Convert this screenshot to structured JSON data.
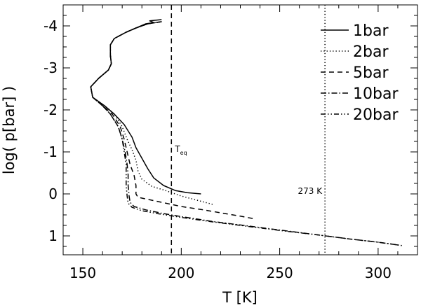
{
  "chart_data": {
    "type": "line",
    "title": "",
    "xlabel": "T [K]",
    "ylabel": "log( p[bar] )",
    "xlim": [
      140,
      320
    ],
    "ylim": [
      1.45,
      -4.5
    ],
    "y_inverted": true,
    "x_ticks": [
      150,
      200,
      250,
      300
    ],
    "y_ticks": [
      -4,
      -3,
      -2,
      -1,
      0,
      1
    ],
    "grid": false,
    "legend_position": "top-right",
    "series": [
      {
        "name": "1bar",
        "dash": "solid",
        "points": [
          [
            190,
            -4.15
          ],
          [
            184,
            -4.12
          ],
          [
            186,
            -4.08
          ],
          [
            182,
            -4.05
          ],
          [
            177,
            -3.95
          ],
          [
            172,
            -3.85
          ],
          [
            166,
            -3.7
          ],
          [
            164,
            -3.55
          ],
          [
            164,
            -3.3
          ],
          [
            164.5,
            -3.1
          ],
          [
            163,
            -2.95
          ],
          [
            158,
            -2.75
          ],
          [
            154,
            -2.55
          ],
          [
            155,
            -2.3
          ],
          [
            161,
            -2.1
          ],
          [
            166,
            -1.9
          ],
          [
            171,
            -1.65
          ],
          [
            175,
            -1.35
          ],
          [
            177,
            -1.1
          ],
          [
            180,
            -0.85
          ],
          [
            183,
            -0.6
          ],
          [
            186,
            -0.38
          ],
          [
            191,
            -0.2
          ],
          [
            197,
            -0.08
          ],
          [
            203,
            -0.03
          ],
          [
            210,
            0.0
          ]
        ]
      },
      {
        "name": "2bar",
        "dash": "dotted",
        "points": [
          [
            190,
            -4.1
          ],
          [
            183,
            -4.05
          ],
          [
            177,
            -3.95
          ],
          [
            172,
            -3.85
          ],
          [
            166,
            -3.7
          ],
          [
            164,
            -3.55
          ],
          [
            164,
            -3.3
          ],
          [
            164.5,
            -3.1
          ],
          [
            163,
            -2.95
          ],
          [
            158,
            -2.75
          ],
          [
            154,
            -2.55
          ],
          [
            155,
            -2.3
          ],
          [
            161,
            -2.1
          ],
          [
            166,
            -1.9
          ],
          [
            170,
            -1.6
          ],
          [
            172.5,
            -1.3
          ],
          [
            175,
            -1.05
          ],
          [
            177,
            -0.8
          ],
          [
            178,
            -0.55
          ],
          [
            180,
            -0.35
          ],
          [
            185,
            -0.18
          ],
          [
            192,
            -0.08
          ],
          [
            200,
            0.05
          ],
          [
            208,
            0.15
          ],
          [
            216,
            0.25
          ]
        ]
      },
      {
        "name": "5bar",
        "dash": "dashed",
        "points": [
          [
            190,
            -4.1
          ],
          [
            183,
            -4.05
          ],
          [
            177,
            -3.95
          ],
          [
            172,
            -3.85
          ],
          [
            166,
            -3.7
          ],
          [
            164,
            -3.55
          ],
          [
            164,
            -3.3
          ],
          [
            164.5,
            -3.1
          ],
          [
            163,
            -2.95
          ],
          [
            158,
            -2.75
          ],
          [
            154,
            -2.55
          ],
          [
            155,
            -2.3
          ],
          [
            160,
            -2.1
          ],
          [
            165,
            -1.9
          ],
          [
            169,
            -1.6
          ],
          [
            171,
            -1.3
          ],
          [
            172.5,
            -1.0
          ],
          [
            174,
            -0.7
          ],
          [
            176,
            -0.45
          ],
          [
            177,
            -0.2
          ],
          [
            177,
            0.0
          ],
          [
            178,
            0.08
          ],
          [
            184,
            0.14
          ],
          [
            192,
            0.22
          ],
          [
            200,
            0.3
          ],
          [
            210,
            0.37
          ],
          [
            220,
            0.45
          ],
          [
            230,
            0.53
          ],
          [
            238,
            0.6
          ]
        ]
      },
      {
        "name": "10bar",
        "dash": "dash-dot",
        "points": [
          [
            190,
            -4.1
          ],
          [
            183,
            -4.05
          ],
          [
            177,
            -3.95
          ],
          [
            172,
            -3.85
          ],
          [
            166,
            -3.7
          ],
          [
            164,
            -3.55
          ],
          [
            164,
            -3.3
          ],
          [
            164.5,
            -3.1
          ],
          [
            163,
            -2.95
          ],
          [
            158,
            -2.75
          ],
          [
            154,
            -2.55
          ],
          [
            155,
            -2.3
          ],
          [
            160,
            -2.1
          ],
          [
            164,
            -1.9
          ],
          [
            168,
            -1.6
          ],
          [
            170,
            -1.3
          ],
          [
            171.5,
            -1.0
          ],
          [
            172.5,
            -0.7
          ],
          [
            173,
            -0.45
          ],
          [
            173,
            -0.2
          ],
          [
            173.5,
            0.05
          ],
          [
            174,
            0.2
          ],
          [
            176,
            0.3
          ],
          [
            182,
            0.38
          ],
          [
            190,
            0.46
          ],
          [
            200,
            0.54
          ],
          [
            215,
            0.65
          ],
          [
            230,
            0.74
          ],
          [
            250,
            0.86
          ],
          [
            270,
            0.98
          ],
          [
            285,
            1.07
          ],
          [
            300,
            1.15
          ],
          [
            312,
            1.23
          ]
        ]
      },
      {
        "name": "20bar",
        "dash": "dash-dot-dot",
        "points": [
          [
            190,
            -4.1
          ],
          [
            183,
            -4.05
          ],
          [
            177,
            -3.95
          ],
          [
            172,
            -3.85
          ],
          [
            166,
            -3.7
          ],
          [
            164,
            -3.55
          ],
          [
            164,
            -3.3
          ],
          [
            164.5,
            -3.1
          ],
          [
            163,
            -2.95
          ],
          [
            158,
            -2.75
          ],
          [
            154,
            -2.55
          ],
          [
            155,
            -2.3
          ],
          [
            160,
            -2.1
          ],
          [
            164,
            -1.9
          ],
          [
            168,
            -1.6
          ],
          [
            170,
            -1.3
          ],
          [
            171,
            -1.0
          ],
          [
            172,
            -0.7
          ],
          [
            172,
            -0.45
          ],
          [
            172,
            -0.2
          ],
          [
            172.5,
            0.05
          ],
          [
            173,
            0.22
          ],
          [
            175,
            0.32
          ],
          [
            180,
            0.4
          ],
          [
            188,
            0.47
          ],
          [
            200,
            0.56
          ],
          [
            215,
            0.66
          ],
          [
            230,
            0.75
          ],
          [
            250,
            0.87
          ],
          [
            270,
            0.98
          ],
          [
            285,
            1.07
          ],
          [
            300,
            1.15
          ],
          [
            312,
            1.23
          ]
        ]
      }
    ],
    "reference_lines": [
      {
        "x": 195,
        "label": "T",
        "subscript": "eq",
        "label_y": -1.0,
        "dash": "dashed"
      },
      {
        "x": 273,
        "label": "273 K",
        "label_y": 0.0,
        "dash": "dotted"
      }
    ]
  }
}
